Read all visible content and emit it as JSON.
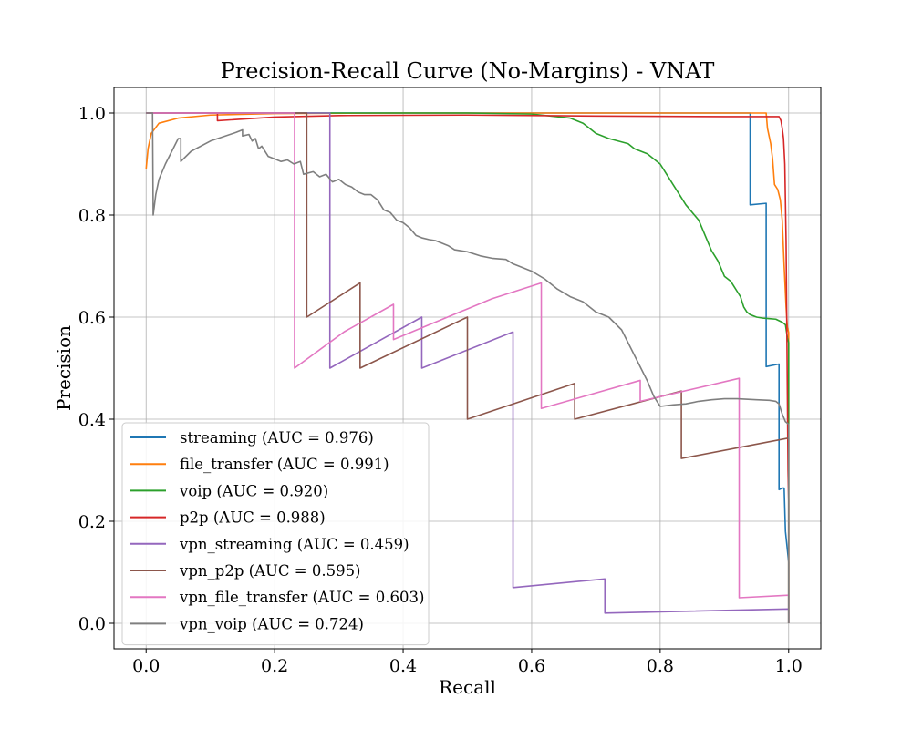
{
  "chart_data": {
    "type": "line",
    "title": "Precision-Recall Curve (No-Margins) - VNAT",
    "xlabel": "Recall",
    "ylabel": "Precision",
    "xlim": [
      -0.05,
      1.05
    ],
    "ylim": [
      -0.05,
      1.05
    ],
    "grid": true,
    "legend_position": "lower-left",
    "xticks": [
      0.0,
      0.2,
      0.4,
      0.6,
      0.8,
      1.0
    ],
    "xtick_labels": [
      "0.0",
      "0.2",
      "0.4",
      "0.6",
      "0.8",
      "1.0"
    ],
    "yticks": [
      0.0,
      0.2,
      0.4,
      0.6,
      0.8,
      1.0
    ],
    "ytick_labels": [
      "0.0",
      "0.2",
      "0.4",
      "0.6",
      "0.8",
      "1.0"
    ],
    "series": [
      {
        "name": "streaming (AUC = 0.976)",
        "color": "#1f77b4",
        "points": [
          [
            0.0,
            1.0
          ],
          [
            0.94,
            1.0
          ],
          [
            0.94,
            0.82
          ],
          [
            0.965,
            0.823
          ],
          [
            0.965,
            0.503
          ],
          [
            0.985,
            0.508
          ],
          [
            0.985,
            0.262
          ],
          [
            0.99,
            0.265
          ],
          [
            0.993,
            0.265
          ],
          [
            0.995,
            0.18
          ],
          [
            1.0,
            0.12
          ],
          [
            1.0,
            0.0
          ]
        ]
      },
      {
        "name": "file_transfer (AUC = 0.991)",
        "color": "#ff7f0e",
        "points": [
          [
            0.0,
            0.89
          ],
          [
            0.003,
            0.93
          ],
          [
            0.008,
            0.96
          ],
          [
            0.02,
            0.98
          ],
          [
            0.05,
            0.99
          ],
          [
            0.1,
            0.996
          ],
          [
            0.2,
            0.999
          ],
          [
            0.4,
            1.0
          ],
          [
            0.6,
            1.0
          ],
          [
            0.8,
            1.0
          ],
          [
            0.965,
            1.0
          ],
          [
            0.967,
            0.97
          ],
          [
            0.972,
            0.94
          ],
          [
            0.975,
            0.91
          ],
          [
            0.978,
            0.86
          ],
          [
            0.983,
            0.85
          ],
          [
            0.987,
            0.83
          ],
          [
            0.99,
            0.79
          ],
          [
            0.993,
            0.7
          ],
          [
            0.996,
            0.62
          ],
          [
            0.998,
            0.58
          ],
          [
            1.0,
            0.57
          ],
          [
            1.0,
            0.0
          ]
        ]
      },
      {
        "name": "voip (AUC = 0.920)",
        "color": "#2ca02c",
        "points": [
          [
            0.0,
            1.0
          ],
          [
            0.5,
            1.0
          ],
          [
            0.6,
            0.998
          ],
          [
            0.66,
            0.99
          ],
          [
            0.68,
            0.98
          ],
          [
            0.69,
            0.97
          ],
          [
            0.7,
            0.96
          ],
          [
            0.72,
            0.95
          ],
          [
            0.75,
            0.94
          ],
          [
            0.76,
            0.93
          ],
          [
            0.78,
            0.92
          ],
          [
            0.8,
            0.9
          ],
          [
            0.81,
            0.88
          ],
          [
            0.82,
            0.86
          ],
          [
            0.83,
            0.84
          ],
          [
            0.84,
            0.82
          ],
          [
            0.86,
            0.79
          ],
          [
            0.87,
            0.76
          ],
          [
            0.88,
            0.73
          ],
          [
            0.89,
            0.71
          ],
          [
            0.9,
            0.68
          ],
          [
            0.91,
            0.67
          ],
          [
            0.915,
            0.66
          ],
          [
            0.92,
            0.65
          ],
          [
            0.925,
            0.64
          ],
          [
            0.93,
            0.62
          ],
          [
            0.935,
            0.61
          ],
          [
            0.94,
            0.605
          ],
          [
            0.95,
            0.6
          ],
          [
            0.96,
            0.598
          ],
          [
            0.97,
            0.597
          ],
          [
            0.98,
            0.596
          ],
          [
            0.99,
            0.59
          ],
          [
            0.995,
            0.585
          ],
          [
            0.998,
            0.56
          ],
          [
            1.0,
            0.55
          ],
          [
            1.0,
            0.0
          ]
        ]
      },
      {
        "name": "p2p (AUC = 0.988)",
        "color": "#d62728",
        "points": [
          [
            0.0,
            1.0
          ],
          [
            0.111,
            1.0
          ],
          [
            0.111,
            0.985
          ],
          [
            0.2,
            0.992
          ],
          [
            0.3,
            0.995
          ],
          [
            0.5,
            0.996
          ],
          [
            0.7,
            0.994
          ],
          [
            0.9,
            0.993
          ],
          [
            0.985,
            0.993
          ],
          [
            0.988,
            0.985
          ],
          [
            0.99,
            0.97
          ],
          [
            0.992,
            0.95
          ],
          [
            0.994,
            0.9
          ],
          [
            0.996,
            0.75
          ],
          [
            0.997,
            0.6
          ],
          [
            0.998,
            0.45
          ],
          [
            0.999,
            0.3
          ],
          [
            1.0,
            0.24
          ],
          [
            1.0,
            0.0
          ]
        ]
      },
      {
        "name": "vpn_streaming (AUC = 0.459)",
        "color": "#9467bd",
        "points": [
          [
            0.0,
            1.0
          ],
          [
            0.286,
            1.0
          ],
          [
            0.286,
            0.5
          ],
          [
            0.429,
            0.6
          ],
          [
            0.429,
            0.5
          ],
          [
            0.571,
            0.571
          ],
          [
            0.571,
            0.07
          ],
          [
            0.714,
            0.087
          ],
          [
            0.714,
            0.02
          ],
          [
            1.0,
            0.028
          ],
          [
            1.0,
            0.0
          ]
        ]
      },
      {
        "name": "vpn_p2p (AUC = 0.595)",
        "color": "#8c564b",
        "points": [
          [
            0.0,
            1.0
          ],
          [
            0.25,
            1.0
          ],
          [
            0.25,
            0.6
          ],
          [
            0.333,
            0.667
          ],
          [
            0.333,
            0.5
          ],
          [
            0.5,
            0.6
          ],
          [
            0.5,
            0.4
          ],
          [
            0.667,
            0.47
          ],
          [
            0.667,
            0.4
          ],
          [
            0.833,
            0.455
          ],
          [
            0.833,
            0.323
          ],
          [
            1.0,
            0.363
          ],
          [
            1.0,
            0.0
          ]
        ]
      },
      {
        "name": "vpn_file_transfer (AUC = 0.603)",
        "color": "#e377c2",
        "points": [
          [
            0.0,
            1.0
          ],
          [
            0.231,
            1.0
          ],
          [
            0.231,
            0.5
          ],
          [
            0.308,
            0.571
          ],
          [
            0.385,
            0.625
          ],
          [
            0.385,
            0.556
          ],
          [
            0.538,
            0.636
          ],
          [
            0.615,
            0.667
          ],
          [
            0.615,
            0.421
          ],
          [
            0.769,
            0.476
          ],
          [
            0.769,
            0.435
          ],
          [
            0.923,
            0.48
          ],
          [
            0.923,
            0.05
          ],
          [
            1.0,
            0.055
          ],
          [
            1.0,
            0.0
          ]
        ]
      },
      {
        "name": "vpn_voip (AUC = 0.724)",
        "color": "#7f7f7f",
        "points": [
          [
            0.0,
            1.0
          ],
          [
            0.01,
            1.0
          ],
          [
            0.011,
            0.8
          ],
          [
            0.015,
            0.84
          ],
          [
            0.02,
            0.87
          ],
          [
            0.03,
            0.9
          ],
          [
            0.05,
            0.95
          ],
          [
            0.054,
            0.95
          ],
          [
            0.054,
            0.905
          ],
          [
            0.07,
            0.925
          ],
          [
            0.1,
            0.945
          ],
          [
            0.14,
            0.962
          ],
          [
            0.15,
            0.967
          ],
          [
            0.15,
            0.955
          ],
          [
            0.16,
            0.958
          ],
          [
            0.165,
            0.945
          ],
          [
            0.17,
            0.95
          ],
          [
            0.175,
            0.93
          ],
          [
            0.18,
            0.935
          ],
          [
            0.19,
            0.915
          ],
          [
            0.2,
            0.91
          ],
          [
            0.21,
            0.905
          ],
          [
            0.22,
            0.908
          ],
          [
            0.23,
            0.9
          ],
          [
            0.24,
            0.905
          ],
          [
            0.245,
            0.88
          ],
          [
            0.26,
            0.885
          ],
          [
            0.27,
            0.875
          ],
          [
            0.28,
            0.88
          ],
          [
            0.29,
            0.865
          ],
          [
            0.3,
            0.87
          ],
          [
            0.31,
            0.86
          ],
          [
            0.32,
            0.855
          ],
          [
            0.33,
            0.845
          ],
          [
            0.34,
            0.84
          ],
          [
            0.35,
            0.84
          ],
          [
            0.36,
            0.83
          ],
          [
            0.37,
            0.81
          ],
          [
            0.38,
            0.805
          ],
          [
            0.39,
            0.79
          ],
          [
            0.4,
            0.785
          ],
          [
            0.41,
            0.775
          ],
          [
            0.42,
            0.76
          ],
          [
            0.43,
            0.755
          ],
          [
            0.44,
            0.752
          ],
          [
            0.45,
            0.75
          ],
          [
            0.46,
            0.745
          ],
          [
            0.47,
            0.74
          ],
          [
            0.48,
            0.732
          ],
          [
            0.49,
            0.73
          ],
          [
            0.5,
            0.728
          ],
          [
            0.52,
            0.72
          ],
          [
            0.54,
            0.715
          ],
          [
            0.56,
            0.713
          ],
          [
            0.57,
            0.705
          ],
          [
            0.58,
            0.7
          ],
          [
            0.6,
            0.69
          ],
          [
            0.62,
            0.675
          ],
          [
            0.64,
            0.655
          ],
          [
            0.66,
            0.64
          ],
          [
            0.68,
            0.63
          ],
          [
            0.7,
            0.61
          ],
          [
            0.72,
            0.6
          ],
          [
            0.74,
            0.575
          ],
          [
            0.75,
            0.55
          ],
          [
            0.76,
            0.525
          ],
          [
            0.77,
            0.5
          ],
          [
            0.78,
            0.475
          ],
          [
            0.79,
            0.445
          ],
          [
            0.8,
            0.425
          ],
          [
            0.82,
            0.428
          ],
          [
            0.84,
            0.43
          ],
          [
            0.86,
            0.435
          ],
          [
            0.88,
            0.438
          ],
          [
            0.9,
            0.44
          ],
          [
            0.92,
            0.44
          ],
          [
            0.95,
            0.438
          ],
          [
            0.97,
            0.437
          ],
          [
            0.98,
            0.435
          ],
          [
            0.985,
            0.43
          ],
          [
            0.99,
            0.41
          ],
          [
            0.995,
            0.395
          ],
          [
            1.0,
            0.39
          ],
          [
            1.0,
            0.0
          ]
        ]
      }
    ]
  }
}
